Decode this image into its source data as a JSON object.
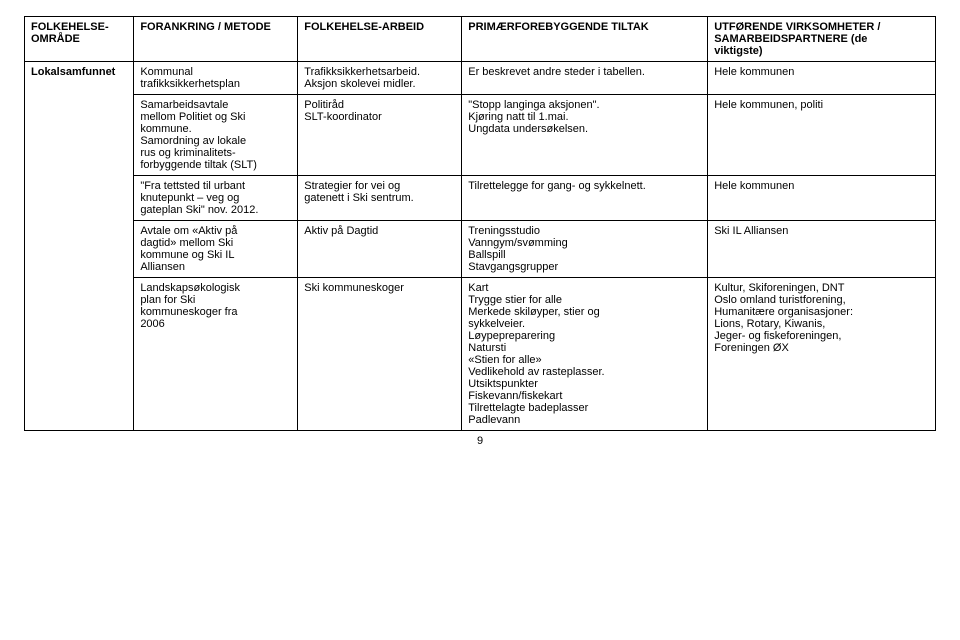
{
  "table": {
    "columns": [
      "FOLKEHELSE-\nOMRÅDE",
      "FORANKRING / METODE",
      "FOLKEHELSE-ARBEID",
      "PRIMÆRFOREBYGGENDE TILTAK",
      "UTFØRENDE VIRKSOMHETER /\nSAMARBEIDSPARTNERE (de\nviktigste)"
    ],
    "rows": [
      {
        "c1": "Lokalsamfunnet",
        "c2": "Kommunal\ntrafikksikkerhetsplan",
        "c3": "Trafikksikkerhetsarbeid.\nAksjon skolevei midler.",
        "c4": "Er beskrevet andre steder i tabellen.",
        "c5": "Hele kommunen"
      },
      {
        "c1": "",
        "c2": "Samarbeidsavtale\nmellom Politiet og Ski\nkommune.\nSamordning av lokale\nrus og kriminalitets-\nforbyggende tiltak (SLT)",
        "c3": "Politiråd\nSLT-koordinator",
        "c4": "\"Stopp langinga aksjonen\".\nKjøring natt til 1.mai.\nUngdata undersøkelsen.",
        "c5": "Hele kommunen, politi"
      },
      {
        "c1": "",
        "c2": "\"Fra tettsted til urbant\nknutepunkt – veg og\ngateplan Ski\" nov. 2012.",
        "c3": "Strategier for vei og\ngatenett i Ski sentrum.",
        "c4": "Tilrettelegge for gang- og sykkelnett.",
        "c5": "Hele kommunen"
      },
      {
        "c1": "",
        "c2": "Avtale om «Aktiv på\ndagtid» mellom Ski\nkommune og Ski IL\nAlliansen",
        "c3": "Aktiv på Dagtid",
        "c4": "Treningsstudio\nVanngym/svømming\nBallspill\nStavgangsgrupper",
        "c5": "Ski IL Alliansen"
      },
      {
        "c1": "",
        "c2": "Landskapsøkologisk\nplan for Ski\nkommuneskoger fra\n2006",
        "c3": "Ski kommuneskoger",
        "c4": "Kart\nTrygge stier for alle\nMerkede skiløyper, stier og\nsykkelveier.\nLøypepreparering\nNatursti\n«Stien for alle»\nVedlikehold av rasteplasser.\nUtsiktspunkter\nFiskevann/fiskekart\nTilrettelagte badeplasser\nPadlevann",
        "c5": "Kultur, Skiforeningen, DNT\nOslo omland turistforening,\nHumanitære organisasjoner:\nLions, Rotary, Kiwanis,\nJeger- og fiskeforeningen,\nForeningen ØX"
      }
    ],
    "column_widths_pct": [
      12,
      18,
      18,
      27,
      25
    ],
    "border_color": "#000000",
    "background_color": "#ffffff",
    "font_size_pt": 11
  },
  "page_number": "9"
}
